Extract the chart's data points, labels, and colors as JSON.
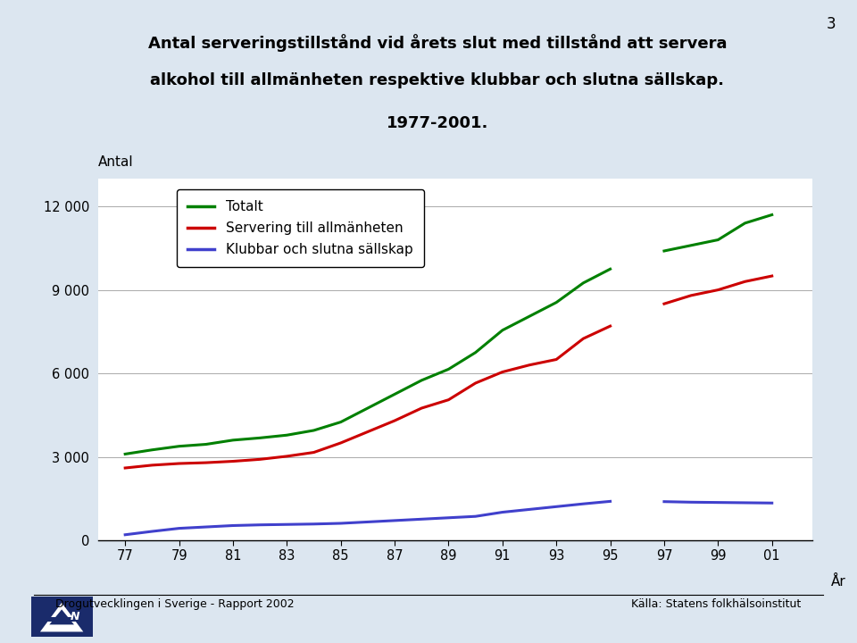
{
  "title_line1": "Antal serveringstillstånd vid årets slut med tillstånd att servera",
  "title_line2": "alkohol till allmänheten respektive klubbar och slutna sällskap.",
  "title_line3": "1977-2001.",
  "page_number": "3",
  "ylabel": "Antal",
  "xlabel": "År",
  "background_color": "#dce6f0",
  "plot_bg_color": "#ffffff",
  "years_seg1": [
    77,
    78,
    79,
    80,
    81,
    82,
    83,
    84,
    85,
    86,
    87,
    88,
    89,
    90,
    91,
    92,
    93,
    94,
    95
  ],
  "years_seg2": [
    97,
    98,
    99,
    100,
    101
  ],
  "totalt_seg1": [
    3100,
    3250,
    3380,
    3450,
    3600,
    3680,
    3780,
    3950,
    4250,
    4750,
    5250,
    5750,
    6150,
    6750,
    7550,
    8050,
    8550,
    9250,
    9750
  ],
  "totalt_seg2": [
    10400,
    10600,
    10800,
    11400,
    11700
  ],
  "servering_seg1": [
    2600,
    2700,
    2760,
    2790,
    2840,
    2910,
    3020,
    3160,
    3500,
    3900,
    4300,
    4750,
    5050,
    5650,
    6050,
    6300,
    6500,
    7250,
    7700
  ],
  "servering_seg2": [
    8500,
    8800,
    9000,
    9300,
    9500
  ],
  "klubbar_seg1": [
    200,
    320,
    430,
    480,
    530,
    555,
    570,
    585,
    610,
    660,
    710,
    760,
    810,
    860,
    1010,
    1110,
    1210,
    1310,
    1400
  ],
  "klubbar_seg2": [
    1390,
    1370,
    1360,
    1350,
    1340
  ],
  "totalt_color": "#008000",
  "servering_color": "#cc0000",
  "klubbar_color": "#4040cc",
  "yticks": [
    0,
    3000,
    6000,
    9000,
    12000
  ],
  "ylim": [
    0,
    13000
  ],
  "xtick_vals": [
    77,
    79,
    81,
    83,
    85,
    87,
    89,
    91,
    93,
    95,
    97,
    99,
    101
  ],
  "xtick_labels": [
    "77",
    "79",
    "81",
    "83",
    "85",
    "87",
    "89",
    "91",
    "93",
    "95",
    "97",
    "99",
    "01"
  ],
  "footer_left": "Drogutvecklingen i Sverige - Rapport 2002",
  "footer_right": "Källa: Statens folkhälsoinstitut",
  "legend_totalt": "Totalt",
  "legend_servering": "Servering till allmänheten",
  "legend_klubbar": "Klubbar och slutna sällskap"
}
